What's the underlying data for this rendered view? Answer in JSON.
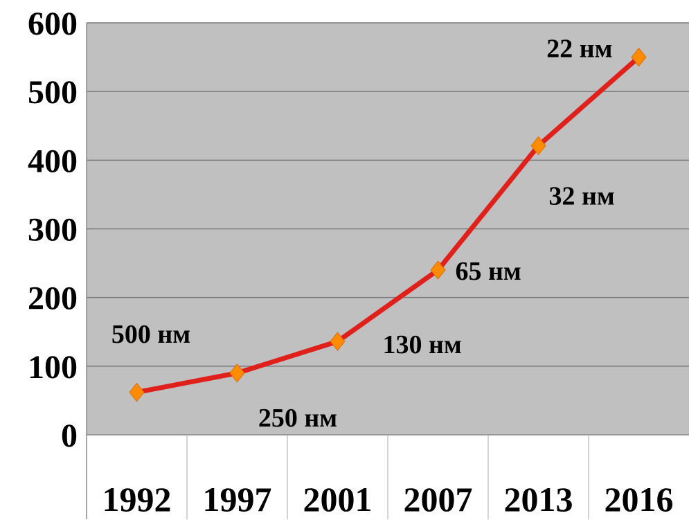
{
  "chart_data": {
    "type": "line",
    "title": "",
    "xlabel": "",
    "ylabel": "",
    "categories": [
      "1992",
      "1997",
      "2001",
      "2007",
      "2013",
      "2016"
    ],
    "y_ticks": [
      "0",
      "100",
      "200",
      "300",
      "400",
      "500",
      "600"
    ],
    "ylim": [
      0,
      600
    ],
    "grid": true,
    "legend": "none",
    "series": [
      {
        "values": [
          62,
          90,
          136,
          240,
          421,
          550
        ],
        "point_labels": [
          "500 нм",
          "250 нм",
          "130 нм",
          "65 нм",
          "32 нм",
          "22 нм"
        ],
        "line_color": "#e0201b",
        "marker_color": "#ff8c00"
      }
    ],
    "plot_background": "#c0c0c0"
  }
}
